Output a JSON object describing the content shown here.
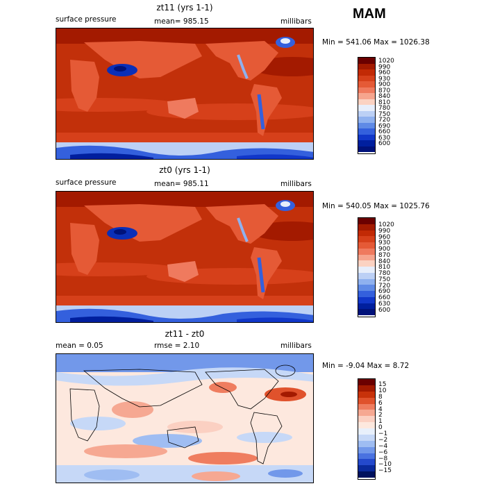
{
  "season": "MAM",
  "panels": [
    {
      "title": "zt11 (yrs 1-1)",
      "left_label": "surface pressure",
      "center_label": "mean= 985.15",
      "right_label": "millibars",
      "minmax": "Min = 541.06 Max = 1026.38",
      "colorbar_labels": [
        "1020",
        "990",
        "960",
        "930",
        "900",
        "870",
        "840",
        "810",
        "780",
        "750",
        "720",
        "690",
        "660",
        "630",
        "600"
      ]
    },
    {
      "title": "zt0 (yrs 1-1)",
      "left_label": "surface pressure",
      "center_label": "mean= 985.11",
      "right_label": "millibars",
      "minmax": "Min = 540.05 Max = 1025.76",
      "colorbar_labels": [
        "1020",
        "990",
        "960",
        "930",
        "900",
        "870",
        "840",
        "810",
        "780",
        "750",
        "720",
        "690",
        "660",
        "630",
        "600"
      ]
    },
    {
      "title": "zt11 - zt0",
      "left_label": "mean =    0.05",
      "center_label": "rmse =    2.10",
      "right_label": "millibars",
      "minmax": "Min =  -9.04 Max =    8.72",
      "colorbar_labels": [
        "15",
        "10",
        "8",
        "6",
        "4",
        "2",
        "1",
        "0",
        "−1",
        "−2",
        "−4",
        "−6",
        "−8",
        "−10",
        "−15"
      ]
    }
  ],
  "colors": {
    "abs_scale": [
      "#6b0000",
      "#a31a00",
      "#c22a05",
      "#d6401a",
      "#e55a36",
      "#ef7a5e",
      "#f6a58e",
      "#fbd2c2",
      "#e7eefb",
      "#bcd0f5",
      "#8fb1ef",
      "#5f8ae6",
      "#3460dd",
      "#1137c9",
      "#001f9e",
      "#00127a"
    ],
    "diff_scale": [
      "#6b0000",
      "#a31a00",
      "#c8320a",
      "#e0522c",
      "#ef7d5f",
      "#f6a892",
      "#fbd0c2",
      "#fde8de",
      "#e8f0fb",
      "#c6d8f7",
      "#9fbdf2",
      "#7298ea",
      "#4a72e0",
      "#2449cc",
      "#0a2a9c",
      "#00125e"
    ]
  }
}
